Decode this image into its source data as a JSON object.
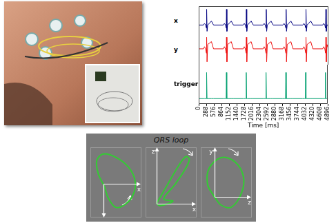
{
  "chart_data": [
    {
      "type": "line",
      "x": [
        0,
        180,
        220,
        260,
        290,
        300,
        315,
        340,
        480,
        560,
        930,
        970,
        1010,
        1040,
        1050,
        1065,
        1090,
        1230,
        1310,
        1680,
        1720,
        1760,
        1790,
        1800,
        1815,
        1840,
        1980,
        2060,
        2430,
        2470,
        2510,
        2540,
        2550,
        2565,
        2590,
        2730,
        2810,
        3180,
        3220,
        3260,
        3290,
        3300,
        3315,
        3340,
        3480,
        3560,
        3930,
        3970,
        4010,
        4040,
        4050,
        4065,
        4090,
        4230,
        4310,
        4680,
        4720,
        4760,
        4790,
        4800,
        4815,
        4840,
        4896
      ],
      "xlim": [
        0,
        4896
      ],
      "xticks": [
        0,
        288,
        576,
        864,
        1152,
        1440,
        1728,
        2016,
        2304,
        2592,
        2880,
        3168,
        3456,
        3744,
        4032,
        4320,
        4608,
        4896
      ],
      "xlabel": "Time [ms]",
      "tick_labels": "x",
      "series": [
        {
          "name": "x",
          "color": "#000080",
          "ylim": [
            -0.6,
            1.2
          ],
          "values": [
            0,
            0,
            0.1,
            0,
            -0.2,
            1,
            -0.4,
            0,
            0.25,
            0,
            0,
            0.1,
            0,
            -0.2,
            1,
            -0.4,
            0,
            0.25,
            0,
            0,
            0.1,
            0,
            -0.2,
            1,
            -0.4,
            0,
            0.25,
            0,
            0,
            0.1,
            0,
            -0.2,
            1,
            -0.4,
            0,
            0.25,
            0,
            0,
            0.1,
            0,
            -0.2,
            1,
            -0.4,
            0,
            0.25,
            0,
            0,
            0.1,
            0,
            -0.2,
            1,
            -0.4,
            0,
            0.25,
            0,
            0,
            0.1,
            0,
            -0.2,
            1,
            -0.4,
            0,
            0
          ]
        },
        {
          "name": "y",
          "color": "#ee1111",
          "ylim": [
            -1.1,
            1.0
          ],
          "values": [
            0,
            0,
            0.15,
            0,
            -0.3,
            0.8,
            -0.9,
            0.3,
            0.5,
            0,
            0,
            0.15,
            0,
            -0.3,
            0.8,
            -0.9,
            0.3,
            0.5,
            0,
            0,
            0.15,
            0,
            -0.3,
            0.8,
            -0.9,
            0.3,
            0.5,
            0,
            0,
            0.15,
            0,
            -0.3,
            0.8,
            -0.9,
            0.3,
            0.5,
            0,
            0,
            0.15,
            0,
            -0.3,
            0.8,
            -0.9,
            0.3,
            0.5,
            0,
            0,
            0.15,
            0,
            -0.3,
            0.8,
            -0.9,
            0.3,
            0.5,
            0,
            0,
            0.15,
            0,
            -0.3,
            0.8,
            -0.9,
            0.3,
            0
          ]
        },
        {
          "name": "trigger",
          "color": "#00a070",
          "ylim": [
            -0.2,
            1.3
          ],
          "values": [
            0,
            0,
            0,
            0,
            0,
            1,
            0,
            0,
            0,
            0,
            0,
            0,
            0,
            0,
            1,
            0,
            0,
            0,
            0,
            0,
            0,
            0,
            0,
            1,
            0,
            0,
            0,
            0,
            0,
            0,
            0,
            0,
            1,
            0,
            0,
            0,
            0,
            0,
            0,
            0,
            0,
            1,
            0,
            0,
            0,
            0,
            0,
            0,
            0,
            0,
            1,
            0,
            0,
            0,
            0,
            0,
            0,
            0,
            0,
            1,
            0,
            0,
            0
          ]
        }
      ]
    },
    {
      "type": "scatter",
      "color": "#33cc33",
      "marker": "none",
      "line_style": "solid",
      "tick_labels": false,
      "xlabel": "x",
      "x": [
        0,
        -0.15,
        -0.2,
        0,
        0.4,
        0.8,
        1.0,
        0.95,
        0.7,
        0.4,
        0.15,
        0.05,
        0
      ],
      "values": [
        0,
        0.3,
        0.7,
        0.9,
        0.8,
        0.5,
        0.1,
        -0.3,
        -0.6,
        -0.7,
        -0.4,
        -0.1,
        0
      ],
      "xlim": [
        -0.4,
        1.2
      ],
      "ylim": [
        -1.0,
        1.1
      ]
    },
    {
      "type": "scatter",
      "color": "#33cc33",
      "marker": "none",
      "line_style": "solid",
      "tick_labels": false,
      "xlabel": "x",
      "ylabel": "z",
      "x": [
        0,
        0.3,
        0.6,
        0.8,
        0.9,
        0.8,
        0.5,
        0.2,
        0.45,
        0.1,
        0
      ],
      "values": [
        0,
        0.4,
        0.8,
        1.0,
        0.95,
        0.75,
        0.4,
        0.1,
        0.05,
        -0.05,
        0
      ],
      "xlim": [
        -0.3,
        1.1
      ],
      "ylim": [
        -0.3,
        1.2
      ]
    },
    {
      "type": "scatter",
      "color": "#33cc33",
      "marker": "none",
      "line_style": "solid",
      "tick_labels": false,
      "xlabel": "z",
      "ylabel": "y",
      "x": [
        0,
        -0.2,
        -0.15,
        0.2,
        0.6,
        0.85,
        0.8,
        0.5,
        0.2,
        0
      ],
      "values": [
        0,
        0.3,
        0.7,
        0.95,
        0.85,
        0.5,
        0.1,
        -0.25,
        -0.2,
        0
      ],
      "xlim": [
        -0.4,
        1.1
      ],
      "ylim": [
        -0.5,
        1.2
      ]
    }
  ],
  "panel": {
    "title": "QRS loop"
  }
}
